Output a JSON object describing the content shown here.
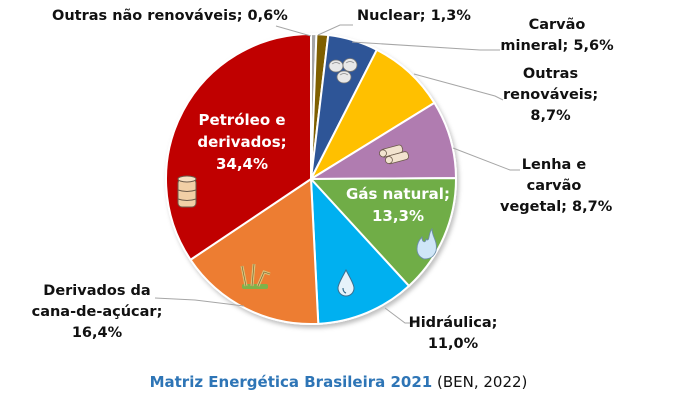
{
  "chart_data": {
    "type": "pie",
    "title": "Matriz Energética Brasileira 2021",
    "source": "(BEN, 2022)",
    "start_angle_deg": 0,
    "direction": "clockwise",
    "slices": [
      {
        "label": "Outras não renováveis",
        "value": 0.6,
        "display": "Outras não renováveis; 0,6%",
        "color": "#a6a6a6",
        "icon": null
      },
      {
        "label": "Nuclear",
        "value": 1.3,
        "display": "Nuclear; 1,3%",
        "color": "#7f5f00",
        "icon": null
      },
      {
        "label": "Carvão mineral",
        "value": 5.6,
        "display": "Carvão mineral; 5,6%",
        "color": "#2f5597",
        "icon": "coal-icon"
      },
      {
        "label": "Outras renováveis",
        "value": 8.7,
        "display": "Outras renováveis; 8,7%",
        "color": "#ffc000",
        "icon": null
      },
      {
        "label": "Lenha e carvão vegetal",
        "value": 8.7,
        "display": "Lenha e carvão vegetal; 8,7%",
        "color": "#b07cb0",
        "icon": "firewood-icon"
      },
      {
        "label": "Gás natural",
        "value": 13.3,
        "display": "Gás natural; 13,3%",
        "color": "#70ad47",
        "icon": "gas-flame-icon"
      },
      {
        "label": "Hidráulica",
        "value": 11.0,
        "display": "Hidráulica; 11,0%",
        "color": "#00b0f0",
        "icon": "water-drop-icon"
      },
      {
        "label": "Derivados da cana-de-açúcar",
        "value": 16.4,
        "display": "Derivados da cana-de-açúcar; 16,4%",
        "color": "#ed7d31",
        "icon": "sugarcane-icon"
      },
      {
        "label": "Petróleo e derivados",
        "value": 34.4,
        "display": "Petróleo e derivados; 34,4%",
        "color": "#c00000",
        "icon": "oil-barrel-icon"
      }
    ],
    "unit": "%",
    "legend": "none (data labels with leader lines)"
  },
  "labels": {
    "outras_nao_renov": [
      "Outras não renováveis; 0,6%"
    ],
    "nuclear": [
      "Nuclear; 1,3%"
    ],
    "carvao": [
      "Carvão",
      "mineral; 5,6%"
    ],
    "outras_renov": [
      "Outras",
      "renováveis;",
      "8,7%"
    ],
    "lenha": [
      "Lenha e",
      "carvão",
      "vegetal; 8,7%"
    ],
    "gas": [
      "Gás natural;",
      "13,3%"
    ],
    "hidraulica": [
      "Hidráulica;",
      "11,0%"
    ],
    "cana": [
      "Derivados da",
      "cana-de-açúcar;",
      "16,4%"
    ],
    "petroleo": [
      "Petróleo e",
      "derivados;",
      "34,4%"
    ]
  },
  "caption": {
    "title": "Matriz Energética Brasileira 2021",
    "source": "(BEN, 2022)"
  }
}
